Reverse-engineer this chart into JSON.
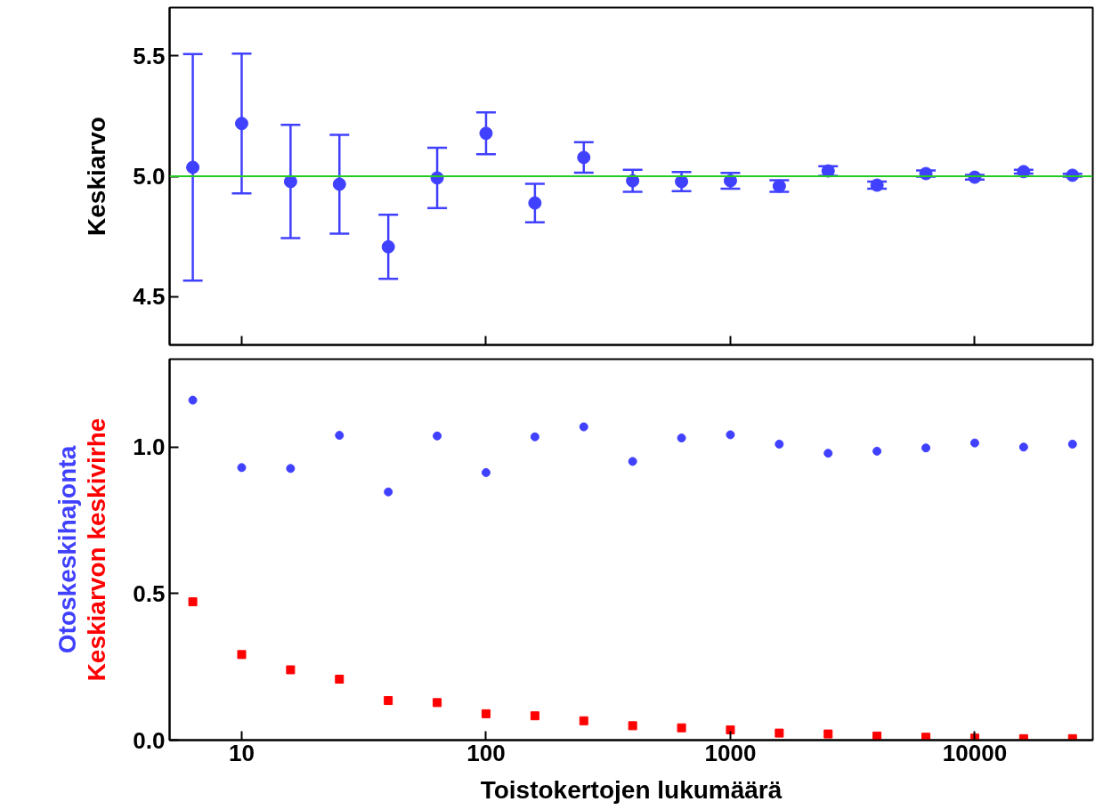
{
  "chart_data": [
    {
      "type": "scatter",
      "ylabel": "Keskiarvo",
      "log": "x",
      "marker": "circle",
      "tick_labels": "y",
      "x": [
        6.31,
        10,
        15.85,
        25.12,
        39.81,
        63.1,
        100,
        158.5,
        251.2,
        398.1,
        631,
        1000,
        1585,
        2512,
        3981,
        6310,
        10000,
        15849,
        25119
      ],
      "xlim": [
        5.07,
        30400
      ],
      "xticks": [
        10,
        100,
        1000,
        10000
      ],
      "ylim": [
        4.3,
        5.7
      ],
      "yticks": [
        4.5,
        {
          "value": 5,
          "label": "5.0"
        },
        5.5
      ],
      "series": [
        {
          "color": "#4040ff",
          "values": [
            5.037,
            5.219,
            4.978,
            4.967,
            4.707,
            4.993,
            5.178,
            4.889,
            5.078,
            4.981,
            4.978,
            4.981,
            4.959,
            5.022,
            4.963,
            5.011,
            4.996,
            5.019,
            5.004
          ],
          "errors": [
            0.47,
            0.29,
            0.235,
            0.205,
            0.133,
            0.125,
            0.087,
            0.08,
            0.063,
            0.046,
            0.04,
            0.033,
            0.024,
            0.02,
            0.015,
            0.013,
            0.01,
            0.008,
            0.006
          ]
        }
      ],
      "ref_lines": [
        {
          "axis": "y",
          "value": 5.0,
          "label": null,
          "color": "#22cc22"
        }
      ]
    },
    {
      "type": "scatter",
      "xlabel": "Toistokertojen lukumäärä",
      "log": "x",
      "x": [
        6.31,
        10,
        15.85,
        25.12,
        39.81,
        63.1,
        100,
        158.5,
        251.2,
        398.1,
        631,
        1000,
        1585,
        2512,
        3981,
        6310,
        10000,
        15849,
        25119
      ],
      "xlim": [
        5.07,
        30400
      ],
      "xticks": [
        10,
        100,
        1000,
        10000
      ],
      "ylim": [
        0,
        1.3
      ],
      "yticks": [
        {
          "value": 0,
          "label": "0.0"
        },
        0.5,
        {
          "value": 1,
          "label": "1.0"
        }
      ],
      "series": [
        {
          "name": "Otoskeskihajonta",
          "color": "#4040ff",
          "marker": "circle",
          "values": [
            1.16,
            0.93,
            0.927,
            1.04,
            0.847,
            1.038,
            0.913,
            1.035,
            1.069,
            0.951,
            1.031,
            1.042,
            1.01,
            0.979,
            0.986,
            0.997,
            1.014,
            1.0,
            1.01
          ]
        },
        {
          "name": "Keskiarvon keskivirhe",
          "color": "#ff0000",
          "marker": "square",
          "values": [
            0.472,
            0.292,
            0.24,
            0.208,
            0.135,
            0.128,
            0.09,
            0.083,
            0.066,
            0.049,
            0.042,
            0.035,
            0.024,
            0.021,
            0.014,
            0.01,
            0.007,
            0.005,
            0.005
          ]
        }
      ]
    }
  ]
}
